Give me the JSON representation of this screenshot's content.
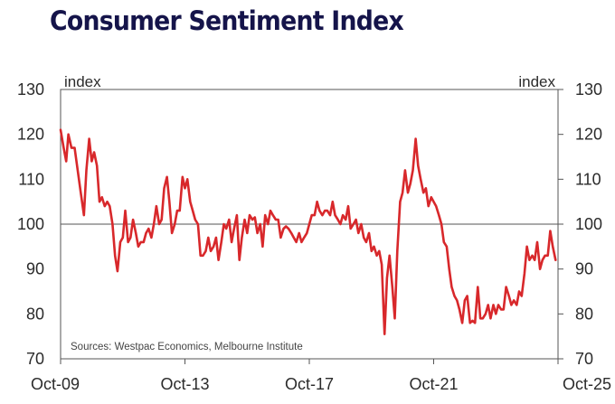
{
  "chart_data": {
    "type": "line",
    "title": "Consumer Sentiment Index",
    "y_unit_left": "index",
    "y_unit_right": "index",
    "source": "Sources: Westpac Economics, Melbourne Institute",
    "ylim": [
      70,
      130
    ],
    "yticks": [
      70,
      80,
      90,
      100,
      110,
      120,
      130
    ],
    "xlim": [
      2009.75,
      2025.75
    ],
    "xtick_positions": [
      2009.75,
      2013.75,
      2017.75,
      2021.75,
      2025.75
    ],
    "xtick_labels": [
      "Oct-09",
      "Oct-13",
      "Oct-17",
      "Oct-21",
      "Oct-25"
    ],
    "reference_line": 100,
    "series": [
      {
        "name": "Consumer Sentiment Index",
        "color": "#d8282b",
        "points": [
          [
            2009.75,
            121
          ],
          [
            2009.85,
            117
          ],
          [
            2009.93,
            114
          ],
          [
            2010.0,
            120
          ],
          [
            2010.1,
            117
          ],
          [
            2010.2,
            117
          ],
          [
            2010.3,
            112
          ],
          [
            2010.4,
            107
          ],
          [
            2010.5,
            102
          ],
          [
            2010.58,
            112
          ],
          [
            2010.67,
            119
          ],
          [
            2010.75,
            114
          ],
          [
            2010.83,
            116
          ],
          [
            2010.92,
            113
          ],
          [
            2011.0,
            105
          ],
          [
            2011.08,
            106
          ],
          [
            2011.17,
            104
          ],
          [
            2011.25,
            105
          ],
          [
            2011.33,
            104
          ],
          [
            2011.42,
            100
          ],
          [
            2011.5,
            93
          ],
          [
            2011.58,
            89.5
          ],
          [
            2011.67,
            96
          ],
          [
            2011.75,
            97
          ],
          [
            2011.83,
            103
          ],
          [
            2011.92,
            96
          ],
          [
            2012.0,
            97
          ],
          [
            2012.08,
            101
          ],
          [
            2012.17,
            98
          ],
          [
            2012.25,
            95
          ],
          [
            2012.33,
            96
          ],
          [
            2012.42,
            96
          ],
          [
            2012.5,
            98
          ],
          [
            2012.58,
            99
          ],
          [
            2012.67,
            97
          ],
          [
            2012.75,
            100
          ],
          [
            2012.83,
            104
          ],
          [
            2012.92,
            100
          ],
          [
            2013.0,
            101
          ],
          [
            2013.08,
            108
          ],
          [
            2013.17,
            110.5
          ],
          [
            2013.25,
            105
          ],
          [
            2013.33,
            98
          ],
          [
            2013.42,
            100
          ],
          [
            2013.5,
            103
          ],
          [
            2013.58,
            103
          ],
          [
            2013.67,
            110.5
          ],
          [
            2013.75,
            108
          ],
          [
            2013.83,
            110
          ],
          [
            2013.92,
            105
          ],
          [
            2014.0,
            103
          ],
          [
            2014.08,
            101
          ],
          [
            2014.17,
            100
          ],
          [
            2014.25,
            93
          ],
          [
            2014.33,
            93
          ],
          [
            2014.42,
            94
          ],
          [
            2014.5,
            97
          ],
          [
            2014.58,
            94
          ],
          [
            2014.67,
            95
          ],
          [
            2014.75,
            97
          ],
          [
            2014.83,
            92
          ],
          [
            2014.92,
            96
          ],
          [
            2015.0,
            100
          ],
          [
            2015.08,
            99
          ],
          [
            2015.17,
            101
          ],
          [
            2015.25,
            96
          ],
          [
            2015.33,
            99
          ],
          [
            2015.42,
            102
          ],
          [
            2015.5,
            92
          ],
          [
            2015.58,
            97
          ],
          [
            2015.67,
            101
          ],
          [
            2015.75,
            98
          ],
          [
            2015.83,
            102
          ],
          [
            2015.92,
            101
          ],
          [
            2016.0,
            101.5
          ],
          [
            2016.08,
            98
          ],
          [
            2016.17,
            100
          ],
          [
            2016.25,
            95
          ],
          [
            2016.33,
            102
          ],
          [
            2016.42,
            100
          ],
          [
            2016.5,
            103
          ],
          [
            2016.58,
            102
          ],
          [
            2016.67,
            101
          ],
          [
            2016.75,
            101
          ],
          [
            2016.83,
            97
          ],
          [
            2016.92,
            99
          ],
          [
            2017.0,
            99.5
          ],
          [
            2017.08,
            99
          ],
          [
            2017.17,
            98
          ],
          [
            2017.25,
            97
          ],
          [
            2017.33,
            96
          ],
          [
            2017.42,
            98
          ],
          [
            2017.5,
            96
          ],
          [
            2017.58,
            97
          ],
          [
            2017.67,
            98
          ],
          [
            2017.75,
            100
          ],
          [
            2017.83,
            102
          ],
          [
            2017.92,
            102
          ],
          [
            2018.0,
            105
          ],
          [
            2018.08,
            103
          ],
          [
            2018.17,
            102
          ],
          [
            2018.25,
            103
          ],
          [
            2018.33,
            103
          ],
          [
            2018.42,
            102
          ],
          [
            2018.5,
            105
          ],
          [
            2018.58,
            102
          ],
          [
            2018.67,
            101
          ],
          [
            2018.75,
            100
          ],
          [
            2018.83,
            102
          ],
          [
            2018.92,
            101
          ],
          [
            2019.0,
            104
          ],
          [
            2019.08,
            99
          ],
          [
            2019.17,
            100
          ],
          [
            2019.25,
            101
          ],
          [
            2019.33,
            98
          ],
          [
            2019.42,
            100
          ],
          [
            2019.5,
            97
          ],
          [
            2019.58,
            96
          ],
          [
            2019.67,
            98
          ],
          [
            2019.75,
            94
          ],
          [
            2019.83,
            95
          ],
          [
            2019.92,
            93
          ],
          [
            2020.0,
            94
          ],
          [
            2020.08,
            91
          ],
          [
            2020.17,
            75.5
          ],
          [
            2020.25,
            88
          ],
          [
            2020.33,
            93
          ],
          [
            2020.42,
            86
          ],
          [
            2020.5,
            79
          ],
          [
            2020.58,
            94
          ],
          [
            2020.67,
            105
          ],
          [
            2020.75,
            107
          ],
          [
            2020.83,
            112
          ],
          [
            2020.92,
            107
          ],
          [
            2021.0,
            109
          ],
          [
            2021.08,
            112
          ],
          [
            2021.17,
            119
          ],
          [
            2021.25,
            113
          ],
          [
            2021.33,
            110
          ],
          [
            2021.42,
            107
          ],
          [
            2021.5,
            108
          ],
          [
            2021.58,
            104
          ],
          [
            2021.67,
            106
          ],
          [
            2021.75,
            105
          ],
          [
            2021.83,
            104
          ],
          [
            2021.92,
            102
          ],
          [
            2022.0,
            100
          ],
          [
            2022.08,
            96
          ],
          [
            2022.17,
            95
          ],
          [
            2022.25,
            90
          ],
          [
            2022.33,
            86
          ],
          [
            2022.42,
            84
          ],
          [
            2022.5,
            83
          ],
          [
            2022.58,
            81
          ],
          [
            2022.67,
            78
          ],
          [
            2022.75,
            83
          ],
          [
            2022.83,
            84
          ],
          [
            2022.92,
            78
          ],
          [
            2023.0,
            78.5
          ],
          [
            2023.08,
            78
          ],
          [
            2023.17,
            86
          ],
          [
            2023.25,
            79
          ],
          [
            2023.33,
            79
          ],
          [
            2023.42,
            80
          ],
          [
            2023.5,
            82
          ],
          [
            2023.58,
            79
          ],
          [
            2023.67,
            82
          ],
          [
            2023.75,
            80
          ],
          [
            2023.83,
            82
          ],
          [
            2023.92,
            81
          ],
          [
            2024.0,
            81
          ],
          [
            2024.08,
            86
          ],
          [
            2024.17,
            84
          ],
          [
            2024.25,
            82
          ],
          [
            2024.33,
            83
          ],
          [
            2024.42,
            82
          ],
          [
            2024.5,
            85
          ],
          [
            2024.58,
            84
          ],
          [
            2024.67,
            89
          ],
          [
            2024.75,
            95
          ],
          [
            2024.83,
            92
          ],
          [
            2024.92,
            93
          ],
          [
            2025.0,
            92
          ],
          [
            2025.08,
            96
          ],
          [
            2025.17,
            90
          ],
          [
            2025.25,
            92
          ],
          [
            2025.33,
            93
          ],
          [
            2025.42,
            93
          ],
          [
            2025.5,
            98.5
          ],
          [
            2025.58,
            95
          ],
          [
            2025.67,
            92
          ]
        ]
      }
    ]
  }
}
